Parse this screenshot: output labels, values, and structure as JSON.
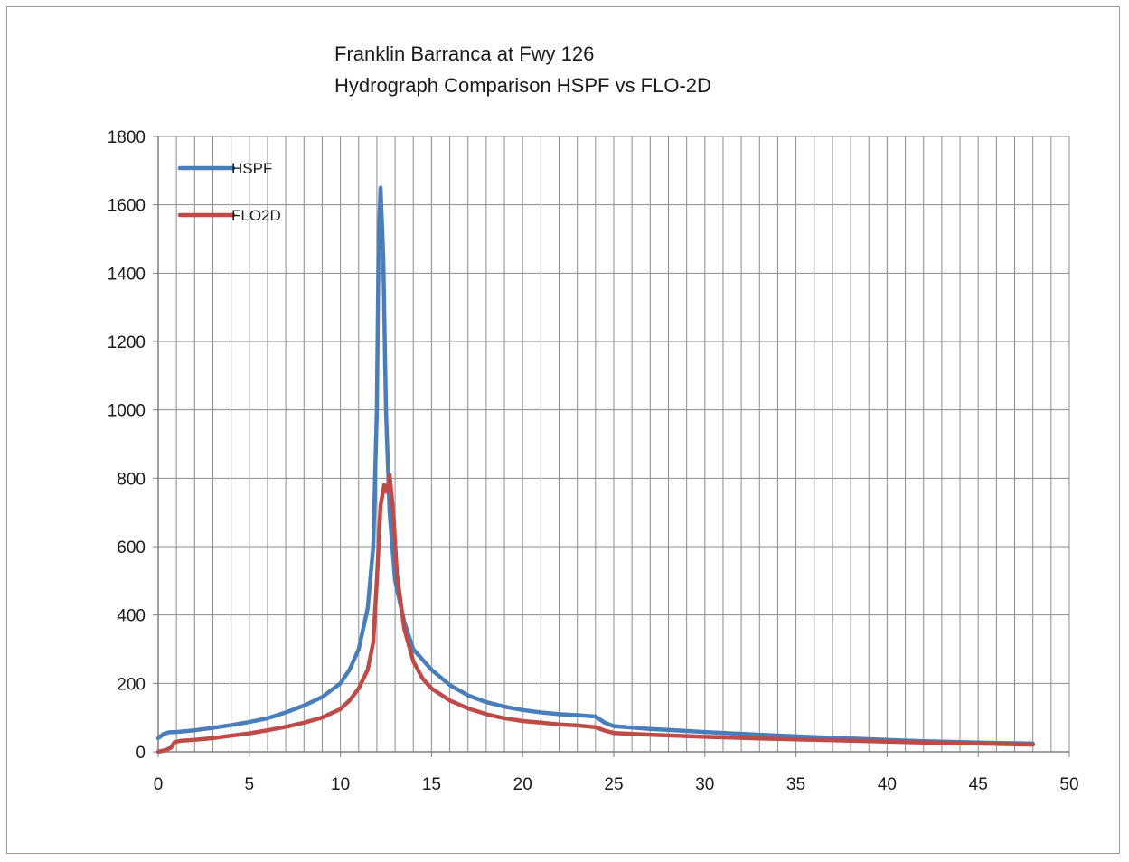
{
  "chart_data": {
    "type": "line",
    "title": [
      "Franklin Barranca at Fwy 126",
      "Hydrograph Comparison HSPF vs FLO-2D"
    ],
    "xlabel": "",
    "ylabel": "",
    "xlim": [
      0,
      50
    ],
    "ylim": [
      0,
      1800
    ],
    "x_ticks": [
      0,
      5,
      10,
      15,
      20,
      25,
      30,
      35,
      40,
      45,
      50
    ],
    "y_ticks": [
      0,
      200,
      400,
      600,
      800,
      1000,
      1200,
      1400,
      1600,
      1800
    ],
    "x_minor_step": 1,
    "grid": true,
    "legend_position": "top-left",
    "series": [
      {
        "name": "HSPF",
        "color": "#4a7ebb",
        "points": [
          [
            0,
            40
          ],
          [
            0.3,
            52
          ],
          [
            0.6,
            57
          ],
          [
            1,
            58
          ],
          [
            2,
            63
          ],
          [
            3,
            70
          ],
          [
            4,
            78
          ],
          [
            5,
            87
          ],
          [
            6,
            98
          ],
          [
            7,
            115
          ],
          [
            8,
            135
          ],
          [
            9,
            160
          ],
          [
            10,
            200
          ],
          [
            10.5,
            240
          ],
          [
            11,
            300
          ],
          [
            11.5,
            420
          ],
          [
            11.8,
            600
          ],
          [
            12,
            1000
          ],
          [
            12.1,
            1500
          ],
          [
            12.2,
            1650
          ],
          [
            12.35,
            1450
          ],
          [
            12.5,
            1000
          ],
          [
            12.7,
            700
          ],
          [
            13,
            500
          ],
          [
            13.5,
            380
          ],
          [
            14,
            300
          ],
          [
            15,
            240
          ],
          [
            16,
            195
          ],
          [
            17,
            165
          ],
          [
            18,
            145
          ],
          [
            19,
            132
          ],
          [
            20,
            122
          ],
          [
            21,
            115
          ],
          [
            22,
            110
          ],
          [
            23,
            107
          ],
          [
            24,
            103
          ],
          [
            24.5,
            85
          ],
          [
            25,
            75
          ],
          [
            27,
            67
          ],
          [
            30,
            58
          ],
          [
            33,
            50
          ],
          [
            36,
            43
          ],
          [
            39,
            37
          ],
          [
            42,
            31
          ],
          [
            45,
            27
          ],
          [
            48,
            24
          ]
        ]
      },
      {
        "name": "FLO2D",
        "color": "#be4b48",
        "points": [
          [
            0,
            0
          ],
          [
            0.4,
            5
          ],
          [
            0.7,
            12
          ],
          [
            0.9,
            28
          ],
          [
            1.2,
            32
          ],
          [
            2,
            35
          ],
          [
            3,
            40
          ],
          [
            4,
            47
          ],
          [
            5,
            54
          ],
          [
            6,
            63
          ],
          [
            7,
            73
          ],
          [
            8,
            85
          ],
          [
            9,
            100
          ],
          [
            10,
            125
          ],
          [
            10.5,
            150
          ],
          [
            11,
            185
          ],
          [
            11.5,
            240
          ],
          [
            11.8,
            320
          ],
          [
            12,
            500
          ],
          [
            12.2,
            720
          ],
          [
            12.4,
            780
          ],
          [
            12.55,
            760
          ],
          [
            12.7,
            810
          ],
          [
            12.9,
            700
          ],
          [
            13.1,
            520
          ],
          [
            13.5,
            360
          ],
          [
            14,
            265
          ],
          [
            14.5,
            215
          ],
          [
            15,
            185
          ],
          [
            16,
            150
          ],
          [
            17,
            127
          ],
          [
            18,
            110
          ],
          [
            19,
            98
          ],
          [
            20,
            90
          ],
          [
            21,
            85
          ],
          [
            22,
            80
          ],
          [
            23,
            77
          ],
          [
            24,
            72
          ],
          [
            24.5,
            62
          ],
          [
            25,
            55
          ],
          [
            27,
            50
          ],
          [
            30,
            44
          ],
          [
            33,
            39
          ],
          [
            36,
            35
          ],
          [
            39,
            31
          ],
          [
            42,
            27
          ],
          [
            45,
            24
          ],
          [
            48,
            21
          ]
        ]
      }
    ]
  }
}
